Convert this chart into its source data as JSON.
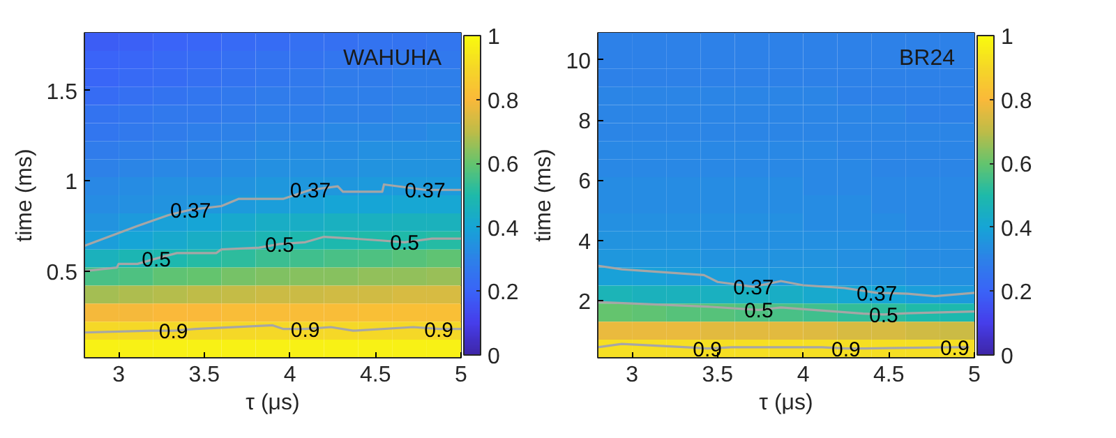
{
  "chart_data": [
    {
      "type": "heatmap",
      "title": "WAHUHA",
      "xlabel": "τ (μs)",
      "ylabel": "time (ms)",
      "x": [
        2.9,
        3.1,
        3.3,
        3.5,
        3.7,
        3.9,
        4.1,
        4.3,
        4.5,
        4.7,
        4.9
      ],
      "y": [
        1.77,
        1.67,
        1.57,
        1.47,
        1.37,
        1.27,
        1.17,
        1.07,
        0.97,
        0.87,
        0.77,
        0.67,
        0.57,
        0.47,
        0.37,
        0.27,
        0.17,
        0.07
      ],
      "cells": [
        [
          0.18,
          0.19,
          0.2,
          0.21,
          0.22,
          0.23,
          0.24,
          0.24,
          0.25,
          0.25,
          0.26
        ],
        [
          0.2,
          0.21,
          0.22,
          0.23,
          0.24,
          0.25,
          0.25,
          0.26,
          0.26,
          0.27,
          0.27
        ],
        [
          0.21,
          0.22,
          0.23,
          0.24,
          0.25,
          0.26,
          0.27,
          0.28,
          0.28,
          0.29,
          0.29
        ],
        [
          0.23,
          0.24,
          0.25,
          0.26,
          0.27,
          0.28,
          0.28,
          0.29,
          0.29,
          0.3,
          0.3
        ],
        [
          0.25,
          0.26,
          0.27,
          0.27,
          0.28,
          0.29,
          0.29,
          0.3,
          0.3,
          0.31,
          0.31
        ],
        [
          0.26,
          0.27,
          0.28,
          0.29,
          0.3,
          0.31,
          0.31,
          0.32,
          0.32,
          0.32,
          0.33
        ],
        [
          0.28,
          0.29,
          0.3,
          0.31,
          0.32,
          0.33,
          0.33,
          0.33,
          0.34,
          0.34,
          0.34
        ],
        [
          0.3,
          0.31,
          0.32,
          0.32,
          0.33,
          0.34,
          0.34,
          0.34,
          0.35,
          0.35,
          0.35
        ],
        [
          0.32,
          0.33,
          0.34,
          0.34,
          0.35,
          0.36,
          0.36,
          0.36,
          0.37,
          0.37,
          0.37
        ],
        [
          0.33,
          0.34,
          0.35,
          0.36,
          0.37,
          0.38,
          0.39,
          0.4,
          0.4,
          0.41,
          0.41
        ],
        [
          0.35,
          0.37,
          0.39,
          0.4,
          0.42,
          0.44,
          0.44,
          0.45,
          0.45,
          0.46,
          0.46
        ],
        [
          0.38,
          0.4,
          0.42,
          0.44,
          0.46,
          0.48,
          0.49,
          0.49,
          0.5,
          0.5,
          0.51
        ],
        [
          0.46,
          0.48,
          0.49,
          0.51,
          0.52,
          0.54,
          0.55,
          0.56,
          0.57,
          0.58,
          0.59
        ],
        [
          0.56,
          0.57,
          0.59,
          0.6,
          0.62,
          0.63,
          0.64,
          0.64,
          0.65,
          0.65,
          0.66
        ],
        [
          0.67,
          0.68,
          0.69,
          0.7,
          0.71,
          0.72,
          0.72,
          0.73,
          0.73,
          0.74,
          0.74
        ],
        [
          0.79,
          0.79,
          0.8,
          0.8,
          0.81,
          0.81,
          0.81,
          0.81,
          0.82,
          0.82,
          0.82
        ],
        [
          0.9,
          0.9,
          0.9,
          0.9,
          0.9,
          0.9,
          0.9,
          0.9,
          0.9,
          0.9,
          0.9
        ],
        [
          0.97,
          0.97,
          0.97,
          0.97,
          0.97,
          0.97,
          0.97,
          0.97,
          0.97,
          0.97,
          0.97
        ]
      ],
      "xlim": [
        2.8,
        5
      ],
      "xticks": [
        3,
        3.5,
        4,
        4.5,
        5
      ],
      "ylim": [
        0.02,
        1.82
      ],
      "yticks": [
        0.5,
        1,
        1.5
      ],
      "clim": [
        0,
        1
      ],
      "cticks": [
        0,
        0.2,
        0.4,
        0.6,
        0.8,
        1
      ],
      "series": [
        {
          "type": "line",
          "color": "#a6a6a6",
          "x": [
            2.8,
            3.11,
            3.29,
            3.42,
            3.6,
            3.7,
            3.96,
            4.12,
            4.28,
            4.31,
            4.54,
            4.55,
            4.79,
            5.0
          ],
          "values": [
            0.64,
            0.75,
            0.81,
            0.84,
            0.86,
            0.9,
            0.9,
            0.95,
            0.97,
            0.94,
            0.94,
            0.98,
            0.95,
            0.95
          ]
        },
        {
          "type": "line",
          "color": "#a6a6a6",
          "x": [
            2.8,
            2.99,
            3.0,
            3.11,
            3.22,
            3.34,
            3.57,
            3.6,
            3.82,
            3.94,
            4.09,
            4.2,
            4.37,
            4.53,
            4.67,
            4.83,
            5.0
          ],
          "values": [
            0.5,
            0.52,
            0.54,
            0.54,
            0.57,
            0.6,
            0.6,
            0.62,
            0.63,
            0.65,
            0.66,
            0.69,
            0.68,
            0.67,
            0.66,
            0.68,
            0.68
          ]
        },
        {
          "type": "line",
          "color": "#a6a6a6",
          "x": [
            2.8,
            3.19,
            3.32,
            3.45,
            3.9,
            3.96,
            4.09,
            4.24,
            4.37,
            4.72,
            4.87,
            5.0
          ],
          "values": [
            0.16,
            0.17,
            0.17,
            0.18,
            0.2,
            0.18,
            0.18,
            0.19,
            0.17,
            0.19,
            0.18,
            0.18
          ]
        }
      ],
      "annotations": [
        {
          "text": "0.37",
          "x": 3.42,
          "y": 0.84
        },
        {
          "text": "0.37",
          "x": 4.12,
          "y": 0.95
        },
        {
          "text": "0.37",
          "x": 4.79,
          "y": 0.95
        },
        {
          "text": "0.5",
          "x": 3.22,
          "y": 0.57
        },
        {
          "text": "0.5",
          "x": 3.94,
          "y": 0.65
        },
        {
          "text": "0.5",
          "x": 4.67,
          "y": 0.66
        },
        {
          "text": "0.9",
          "x": 3.32,
          "y": 0.17
        },
        {
          "text": "0.9",
          "x": 4.09,
          "y": 0.18
        },
        {
          "text": "0.9",
          "x": 4.87,
          "y": 0.18
        }
      ]
    },
    {
      "type": "heatmap",
      "title": "BR24",
      "xlabel": "τ (μs)",
      "ylabel": "time (ms)",
      "x": [
        2.9,
        3.1,
        3.3,
        3.5,
        3.7,
        3.9,
        4.1,
        4.3,
        4.5,
        4.7,
        4.9
      ],
      "y": [
        10.6,
        10.0,
        9.4,
        8.8,
        8.2,
        7.6,
        7.0,
        6.4,
        5.8,
        5.2,
        4.6,
        4.0,
        3.4,
        2.8,
        2.2,
        1.6,
        1.0,
        0.4
      ],
      "cells": [
        [
          0.3,
          0.3,
          0.3,
          0.3,
          0.3,
          0.3,
          0.3,
          0.3,
          0.3,
          0.3,
          0.3
        ],
        [
          0.3,
          0.3,
          0.3,
          0.3,
          0.3,
          0.3,
          0.3,
          0.3,
          0.3,
          0.3,
          0.3
        ],
        [
          0.3,
          0.3,
          0.3,
          0.3,
          0.3,
          0.3,
          0.3,
          0.3,
          0.3,
          0.3,
          0.3
        ],
        [
          0.31,
          0.31,
          0.31,
          0.31,
          0.31,
          0.31,
          0.31,
          0.3,
          0.3,
          0.3,
          0.3
        ],
        [
          0.31,
          0.31,
          0.31,
          0.31,
          0.31,
          0.31,
          0.31,
          0.31,
          0.31,
          0.3,
          0.3
        ],
        [
          0.31,
          0.31,
          0.31,
          0.31,
          0.31,
          0.31,
          0.31,
          0.31,
          0.31,
          0.31,
          0.31
        ],
        [
          0.32,
          0.32,
          0.32,
          0.32,
          0.32,
          0.32,
          0.32,
          0.31,
          0.31,
          0.31,
          0.31
        ],
        [
          0.32,
          0.32,
          0.32,
          0.32,
          0.32,
          0.32,
          0.32,
          0.32,
          0.31,
          0.31,
          0.31
        ],
        [
          0.33,
          0.33,
          0.33,
          0.33,
          0.33,
          0.33,
          0.32,
          0.32,
          0.32,
          0.32,
          0.32
        ],
        [
          0.33,
          0.33,
          0.33,
          0.33,
          0.33,
          0.33,
          0.33,
          0.33,
          0.32,
          0.32,
          0.32
        ],
        [
          0.34,
          0.34,
          0.34,
          0.34,
          0.34,
          0.34,
          0.33,
          0.33,
          0.33,
          0.32,
          0.32
        ],
        [
          0.35,
          0.35,
          0.35,
          0.34,
          0.34,
          0.34,
          0.34,
          0.34,
          0.33,
          0.33,
          0.33
        ],
        [
          0.36,
          0.36,
          0.36,
          0.35,
          0.35,
          0.35,
          0.35,
          0.34,
          0.34,
          0.33,
          0.33
        ],
        [
          0.39,
          0.39,
          0.38,
          0.38,
          0.37,
          0.36,
          0.36,
          0.35,
          0.35,
          0.34,
          0.34
        ],
        [
          0.47,
          0.46,
          0.46,
          0.45,
          0.45,
          0.44,
          0.42,
          0.41,
          0.4,
          0.38,
          0.37
        ],
        [
          0.6,
          0.59,
          0.58,
          0.58,
          0.57,
          0.56,
          0.55,
          0.53,
          0.52,
          0.5,
          0.49
        ],
        [
          0.77,
          0.77,
          0.77,
          0.76,
          0.76,
          0.76,
          0.75,
          0.74,
          0.74,
          0.73,
          0.72
        ],
        [
          0.92,
          0.92,
          0.92,
          0.92,
          0.92,
          0.92,
          0.92,
          0.92,
          0.92,
          0.92,
          0.92
        ]
      ],
      "xlim": [
        2.8,
        5
      ],
      "xticks": [
        3,
        3.5,
        4,
        4.5,
        5
      ],
      "ylim": [
        0.1,
        10.9
      ],
      "yticks": [
        2,
        4,
        6,
        8,
        10
      ],
      "clim": [
        0,
        1
      ],
      "cticks": [
        0,
        0.2,
        0.4,
        0.6,
        0.8,
        1
      ],
      "series": [
        {
          "type": "line",
          "color": "#a6a6a6",
          "x": [
            2.8,
            2.94,
            3.42,
            3.5,
            3.71,
            3.87,
            4.0,
            4.24,
            4.43,
            4.61,
            4.77,
            5.0
          ],
          "values": [
            3.16,
            3.04,
            2.85,
            2.62,
            2.46,
            2.65,
            2.51,
            2.42,
            2.26,
            2.23,
            2.15,
            2.26
          ]
        },
        {
          "type": "line",
          "color": "#a6a6a6",
          "x": [
            2.8,
            3.44,
            3.74,
            3.87,
            4.35,
            4.47,
            4.61,
            5.0
          ],
          "values": [
            1.95,
            1.8,
            1.69,
            1.77,
            1.57,
            1.54,
            1.58,
            1.64
          ]
        },
        {
          "type": "line",
          "color": "#a6a6a6",
          "x": [
            2.8,
            2.94,
            3.32,
            3.44,
            3.58,
            4.11,
            4.25,
            4.36,
            4.87,
            4.97
          ],
          "values": [
            0.45,
            0.56,
            0.45,
            0.41,
            0.45,
            0.45,
            0.41,
            0.41,
            0.45,
            0.45
          ]
        }
      ],
      "annotations": [
        {
          "text": "0.37",
          "x": 3.71,
          "y": 2.46
        },
        {
          "text": "0.37",
          "x": 4.43,
          "y": 2.26
        },
        {
          "text": "0.5",
          "x": 3.74,
          "y": 1.69
        },
        {
          "text": "0.5",
          "x": 4.47,
          "y": 1.54
        },
        {
          "text": "0.9",
          "x": 3.44,
          "y": 0.41
        },
        {
          "text": "0.9",
          "x": 4.25,
          "y": 0.41
        },
        {
          "text": "0.9",
          "x": 4.97,
          "y": 0.45
        }
      ]
    }
  ]
}
